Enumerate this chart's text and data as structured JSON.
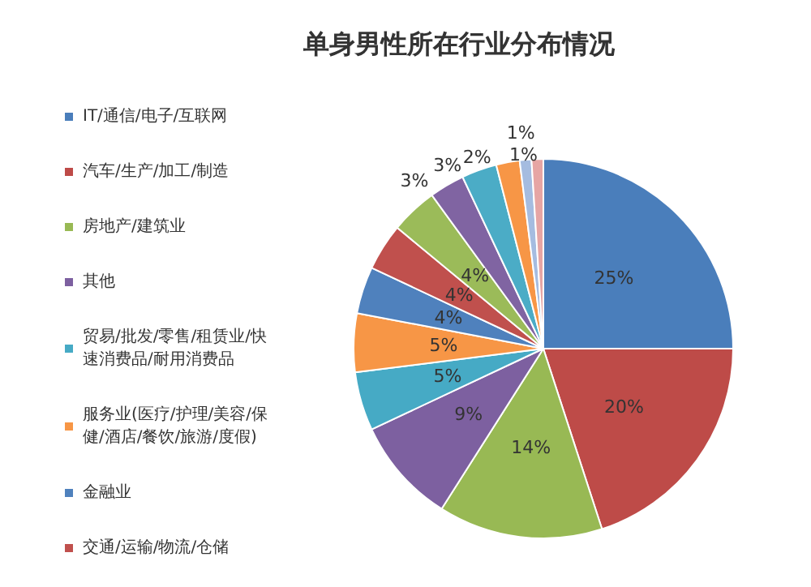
{
  "chart_data": {
    "type": "pie",
    "title": "单身男性所在行业分布情况",
    "categories": [
      "IT/通信/电子/互联网",
      "汽车/生产/加工/制造",
      "房地产/建筑业",
      "其他",
      "贸易/批发/零售/租赁业/快速消费品/耐用消费品",
      "服务业(医疗/护理/美容/保健/酒店/餐饮/旅游/度假)",
      "金融业",
      "交通/运输/物流/仓储",
      null,
      null,
      null,
      null,
      null,
      null
    ],
    "values": [
      25,
      20,
      14,
      9,
      5,
      5,
      4,
      4,
      4,
      3,
      3,
      2,
      1,
      1
    ],
    "colors": [
      "#4a7ebb",
      "#be4b48",
      "#98b954",
      "#7d60a0",
      "#46aac5",
      "#f79646",
      "#4f81bd",
      "#c0504d",
      "#9bbb59",
      "#8064a2",
      "#4bacc6",
      "#f79646",
      "#a5bce0",
      "#e6a5a4"
    ],
    "value_labels": [
      "25%",
      "20%",
      "14%",
      "9%",
      "5%",
      "5%",
      "4%",
      "4%",
      "4%",
      "3%",
      "3%",
      "2%",
      "1%",
      "1%"
    ],
    "legend": "left"
  }
}
